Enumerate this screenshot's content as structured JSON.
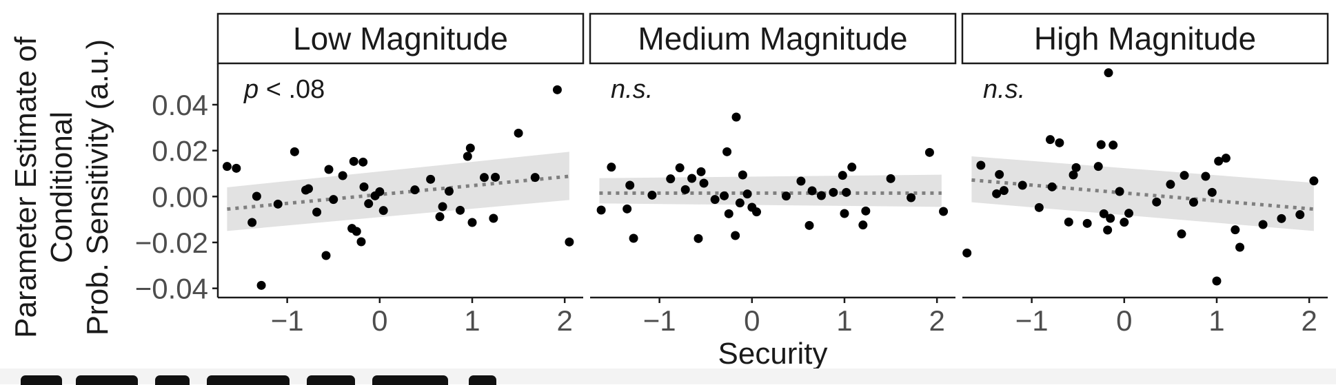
{
  "chart_data": {
    "type": "scatter",
    "xlabel": "Security",
    "ylabel_lines": [
      "Parameter Estimate of",
      "Conditional",
      "Prob. Sensitivity (a.u.)"
    ],
    "xlim": [
      -1.75,
      2.2
    ],
    "ylim": [
      -0.044,
      0.058
    ],
    "x_ticks": [
      -1,
      0,
      1,
      2
    ],
    "x_tick_labels": [
      "−1",
      "0",
      "1",
      "2"
    ],
    "y_ticks": [
      0.04,
      0.02,
      0.0,
      -0.02,
      -0.04
    ],
    "y_tick_labels": [
      "0.04",
      "0.02",
      "0.00",
      "−0.02",
      "−0.04"
    ],
    "grid": false,
    "panels": [
      {
        "title": "Low Magnitude",
        "annotation_prefix": "p",
        "annotation_rest": " < .08",
        "fit": {
          "x0": -1.65,
          "y0": -0.0055,
          "x1": 2.05,
          "y1": 0.0088
        },
        "band": {
          "lower": [
            -0.015,
            -0.0015
          ],
          "upper": [
            0.004,
            0.0195
          ]
        },
        "points": [
          [
            -1.65,
            0.0131
          ],
          [
            -1.55,
            0.0123
          ],
          [
            -1.38,
            -0.0113
          ],
          [
            -1.33,
            0.0001
          ],
          [
            -1.28,
            -0.0387
          ],
          [
            -1.1,
            -0.0033
          ],
          [
            -0.92,
            0.0195
          ],
          [
            -0.8,
            0.0028
          ],
          [
            -0.77,
            0.0034
          ],
          [
            -0.68,
            -0.0068
          ],
          [
            -0.58,
            -0.0257
          ],
          [
            -0.55,
            0.0118
          ],
          [
            -0.5,
            -0.0013
          ],
          [
            -0.4,
            0.0091
          ],
          [
            -0.3,
            -0.0139
          ],
          [
            -0.28,
            0.0153
          ],
          [
            -0.25,
            -0.0152
          ],
          [
            -0.2,
            -0.0197
          ],
          [
            -0.18,
            0.015
          ],
          [
            -0.17,
            0.0042
          ],
          [
            -0.12,
            -0.0031
          ],
          [
            -0.05,
            0.0003
          ],
          [
            0.0,
            0.0021
          ],
          [
            0.04,
            -0.0061
          ],
          [
            0.38,
            0.0029
          ],
          [
            0.55,
            0.0075
          ],
          [
            0.65,
            -0.0088
          ],
          [
            0.68,
            -0.0044
          ],
          [
            0.75,
            0.0023
          ],
          [
            0.87,
            -0.006
          ],
          [
            0.95,
            0.0175
          ],
          [
            0.98,
            0.0211
          ],
          [
            1.0,
            -0.0113
          ],
          [
            1.13,
            0.0083
          ],
          [
            1.23,
            -0.0095
          ],
          [
            1.25,
            0.0084
          ],
          [
            1.5,
            0.0276
          ],
          [
            1.68,
            0.0083
          ],
          [
            1.92,
            0.0465
          ],
          [
            2.05,
            -0.0198
          ]
        ]
      },
      {
        "title": "Medium Magnitude",
        "annotation_prefix": "",
        "annotation_rest": "n.s.",
        "fit": {
          "x0": -1.65,
          "y0": 0.0015,
          "x1": 2.05,
          "y1": 0.0015
        },
        "band": {
          "lower": [
            -0.003,
            -0.0045
          ],
          "upper": [
            0.008,
            0.0095
          ]
        },
        "points": [
          [
            -1.63,
            -0.0059
          ],
          [
            -1.52,
            0.0128
          ],
          [
            -1.35,
            -0.0054
          ],
          [
            -1.32,
            0.0049
          ],
          [
            -1.28,
            -0.0182
          ],
          [
            -1.08,
            0.0006
          ],
          [
            -0.88,
            0.0077
          ],
          [
            -0.78,
            0.0125
          ],
          [
            -0.72,
            0.003
          ],
          [
            -0.65,
            0.0079
          ],
          [
            -0.58,
            -0.0183
          ],
          [
            -0.55,
            0.0108
          ],
          [
            -0.52,
            0.0058
          ],
          [
            -0.4,
            -0.0013
          ],
          [
            -0.3,
            0.0003
          ],
          [
            -0.27,
            0.0195
          ],
          [
            -0.25,
            -0.0075
          ],
          [
            -0.18,
            -0.017
          ],
          [
            -0.17,
            0.0346
          ],
          [
            -0.13,
            -0.0028
          ],
          [
            -0.1,
            0.0094
          ],
          [
            -0.05,
            0.0011
          ],
          [
            0.0,
            -0.0047
          ],
          [
            0.05,
            -0.0067
          ],
          [
            0.37,
            0.0002
          ],
          [
            0.53,
            0.0067
          ],
          [
            0.62,
            -0.0126
          ],
          [
            0.65,
            0.0025
          ],
          [
            0.75,
            0.0004
          ],
          [
            0.88,
            0.0018
          ],
          [
            0.98,
            0.0092
          ],
          [
            1.0,
            -0.0074
          ],
          [
            1.02,
            0.0018
          ],
          [
            1.08,
            0.0128
          ],
          [
            1.2,
            -0.0124
          ],
          [
            1.23,
            -0.0063
          ],
          [
            1.5,
            0.0078
          ],
          [
            1.72,
            -0.0005
          ],
          [
            1.92,
            0.0192
          ],
          [
            2.07,
            -0.0065
          ]
        ]
      },
      {
        "title": "High Magnitude",
        "annotation_prefix": "",
        "annotation_rest": "n.s.",
        "fit": {
          "x0": -1.65,
          "y0": 0.0072,
          "x1": 2.05,
          "y1": -0.0055
        },
        "band": {
          "lower": [
            -0.0025,
            -0.015
          ],
          "upper": [
            0.0175,
            0.006
          ]
        },
        "points": [
          [
            -1.7,
            -0.0246
          ],
          [
            -1.55,
            0.0136
          ],
          [
            -1.38,
            0.0012
          ],
          [
            -1.35,
            0.0096
          ],
          [
            -1.3,
            0.0026
          ],
          [
            -1.1,
            0.0049
          ],
          [
            -0.92,
            -0.0048
          ],
          [
            -0.8,
            0.0248
          ],
          [
            -0.78,
            0.0042
          ],
          [
            -0.7,
            0.0234
          ],
          [
            -0.6,
            -0.0111
          ],
          [
            -0.55,
            0.0094
          ],
          [
            -0.52,
            0.0126
          ],
          [
            -0.4,
            -0.0117
          ],
          [
            -0.28,
            0.0131
          ],
          [
            -0.25,
            0.0226
          ],
          [
            -0.22,
            -0.0075
          ],
          [
            -0.18,
            -0.0146
          ],
          [
            -0.17,
            0.0539
          ],
          [
            -0.15,
            -0.0095
          ],
          [
            -0.12,
            0.0224
          ],
          [
            -0.05,
            0.0022
          ],
          [
            0.0,
            -0.0112
          ],
          [
            0.05,
            -0.0073
          ],
          [
            0.35,
            -0.0024
          ],
          [
            0.5,
            0.0053
          ],
          [
            0.62,
            -0.0163
          ],
          [
            0.65,
            0.0092
          ],
          [
            0.75,
            -0.0025
          ],
          [
            0.88,
            0.0088
          ],
          [
            0.95,
            0.0018
          ],
          [
            1.0,
            -0.0368
          ],
          [
            1.02,
            0.0154
          ],
          [
            1.1,
            0.0167
          ],
          [
            1.2,
            -0.0145
          ],
          [
            1.25,
            -0.0221
          ],
          [
            1.5,
            -0.0122
          ],
          [
            1.7,
            -0.0096
          ],
          [
            1.9,
            -0.0079
          ],
          [
            2.05,
            0.0068
          ]
        ]
      }
    ]
  },
  "colors": {
    "point": "#000000",
    "band": "#e2e2e2",
    "fit": "#7f7f7f",
    "axis": "#1a1a1a",
    "tick_label": "#4d4d4d",
    "strip_border": "#1a1a1a",
    "strip_fill": "#ffffff"
  }
}
